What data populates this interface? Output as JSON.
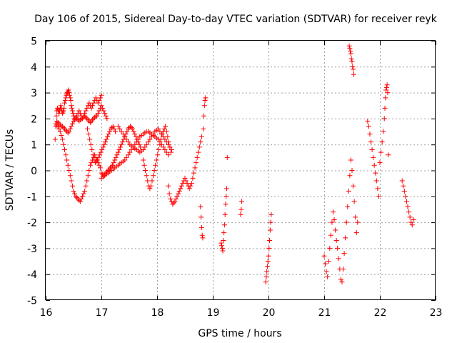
{
  "chart_data": {
    "type": "scatter",
    "title": "Day 106 of 2015, Sidereal Day-to-day VTEC variation (SDTVAR) for receiver reyk",
    "xlabel": "GPS time / hours",
    "ylabel": "SDTVAR / TECUs",
    "xlim": [
      16,
      23
    ],
    "ylim": [
      -5,
      5
    ],
    "xticks": [
      "16",
      "17",
      "18",
      "19",
      "20",
      "21",
      "22",
      "23"
    ],
    "yticks": [
      "5",
      "4",
      "3",
      "2",
      "1",
      "0",
      "-1",
      "-2",
      "-3",
      "-4",
      "-5"
    ],
    "grid": true,
    "marker": "+",
    "color": "#ff0000",
    "series": [
      {
        "name": "SDTVAR",
        "x": [
          16.17,
          16.18,
          16.19,
          16.2,
          16.21,
          16.22,
          16.23,
          16.24,
          16.25,
          16.26,
          16.27,
          16.28,
          16.29,
          16.3,
          16.31,
          16.32,
          16.33,
          16.34,
          16.35,
          16.36,
          16.37,
          16.38,
          16.39,
          16.4,
          16.41,
          16.42,
          16.43,
          16.44,
          16.45,
          16.46,
          16.47,
          16.48,
          16.49,
          16.5,
          16.52,
          16.54,
          16.56,
          16.58,
          16.6,
          16.62,
          16.64,
          16.66,
          16.68,
          16.7,
          16.72,
          16.74,
          16.76,
          16.78,
          16.8,
          16.82,
          16.84,
          16.86,
          16.88,
          16.9,
          16.92,
          16.94,
          16.96,
          16.98,
          17.0,
          16.2,
          16.22,
          16.24,
          16.26,
          16.28,
          16.3,
          16.32,
          16.34,
          16.36,
          16.38,
          16.4,
          16.42,
          16.44,
          16.46,
          16.48,
          16.5,
          16.52,
          16.54,
          16.56,
          16.58,
          16.6,
          16.62,
          16.64,
          16.66,
          16.68,
          16.7,
          16.72,
          16.74,
          16.76,
          16.78,
          16.8,
          16.82,
          16.84,
          16.86,
          16.88,
          16.9,
          16.92,
          16.94,
          16.96,
          16.98,
          17.0,
          17.02,
          17.04,
          17.06,
          17.08,
          17.1,
          16.18,
          16.2,
          16.22,
          16.24,
          16.26,
          16.28,
          16.3,
          16.32,
          16.34,
          16.36,
          16.38,
          16.4,
          16.42,
          16.44,
          16.46,
          16.48,
          16.5,
          16.52,
          16.54,
          16.56,
          16.58,
          16.6,
          16.62,
          16.64,
          16.66,
          16.68,
          16.7,
          16.72,
          16.74,
          16.76,
          16.78,
          16.8,
          16.82,
          16.84,
          16.86,
          16.88,
          16.9,
          16.92,
          16.94,
          16.96,
          16.98,
          16.75,
          16.77,
          16.79,
          16.81,
          16.83,
          16.85,
          16.87,
          16.89,
          16.91,
          16.93,
          16.95,
          16.97,
          16.99,
          17.01,
          17.03,
          17.05,
          17.07,
          17.09,
          17.11,
          17.13,
          17.15,
          17.17,
          17.19,
          17.21,
          17.23,
          17.25,
          17.0,
          17.02,
          17.04,
          17.06,
          17.08,
          17.1,
          17.12,
          17.14,
          17.16,
          17.18,
          17.2,
          17.22,
          17.24,
          17.26,
          17.28,
          17.3,
          17.32,
          17.34,
          17.36,
          17.38,
          17.4,
          17.42,
          17.44,
          17.46,
          17.48,
          17.5,
          17.52,
          17.54,
          17.56,
          17.58,
          17.6,
          17.62,
          17.64,
          17.66,
          17.68,
          17.7,
          17.0,
          17.03,
          17.06,
          17.09,
          17.12,
          17.15,
          17.18,
          17.21,
          17.24,
          17.27,
          17.3,
          17.33,
          17.36,
          17.39,
          17.42,
          17.45,
          17.48,
          17.51,
          17.54,
          17.57,
          17.6,
          17.63,
          17.66,
          17.69,
          17.72,
          17.75,
          17.78,
          17.81,
          17.84,
          17.87,
          17.9,
          17.93,
          17.96,
          17.99,
          18.02,
          18.05,
          18.08,
          18.11,
          18.14,
          18.17,
          18.2,
          17.3,
          17.33,
          17.36,
          17.39,
          17.42,
          17.45,
          17.48,
          17.51,
          17.54,
          17.57,
          17.6,
          17.63,
          17.66,
          17.69,
          17.72,
          17.75,
          17.78,
          17.81,
          17.84,
          17.87,
          17.9,
          17.93,
          17.96,
          17.99,
          18.02,
          18.05,
          18.08,
          18.11,
          18.14,
          18.17,
          18.2,
          18.23,
          18.26,
          17.75,
          17.77,
          17.79,
          17.81,
          17.83,
          17.85,
          17.87,
          17.89,
          17.91,
          17.93,
          17.95,
          17.97,
          17.99,
          18.01,
          18.03,
          18.05,
          18.07,
          18.09,
          18.11,
          18.13,
          18.15,
          18.17,
          18.19,
          18.21,
          18.23,
          18.25,
          18.2,
          18.22,
          18.24,
          18.26,
          18.28,
          18.3,
          18.32,
          18.34,
          18.36,
          18.38,
          18.4,
          18.42,
          18.44,
          18.46,
          18.48,
          18.5,
          18.52,
          18.54,
          18.56,
          18.58,
          18.6,
          18.62,
          18.64,
          18.66,
          18.68,
          18.7,
          18.72,
          18.74,
          18.76,
          18.78,
          18.8,
          18.78,
          18.79,
          18.8,
          18.81,
          18.82,
          18.83,
          18.84,
          18.85,
          18.86,
          18.87,
          19.15,
          19.16,
          19.17,
          19.18,
          19.19,
          19.2,
          19.21,
          19.22,
          19.23,
          19.24,
          19.25,
          19.26,
          19.5,
          19.51,
          19.52,
          19.95,
          19.96,
          19.97,
          19.98,
          19.99,
          20.0,
          20.01,
          20.02,
          20.03,
          20.04,
          20.05,
          21.0,
          21.02,
          21.04,
          21.06,
          21.08,
          21.1,
          21.12,
          21.14,
          21.16,
          21.18,
          21.2,
          21.22,
          21.24,
          21.26,
          21.28,
          21.3,
          21.32,
          21.34,
          21.36,
          21.38,
          21.4,
          21.42,
          21.44,
          21.46,
          21.48,
          21.5,
          21.52,
          21.54,
          21.56,
          21.58,
          21.6,
          21.45,
          21.46,
          21.47,
          21.48,
          21.49,
          21.5,
          21.51,
          21.52,
          21.53,
          21.78,
          21.8,
          21.82,
          21.84,
          21.86,
          21.88,
          21.9,
          21.92,
          21.94,
          21.96,
          21.98,
          22.0,
          22.02,
          22.04,
          22.06,
          22.08,
          22.09,
          22.1,
          22.11,
          22.12,
          22.13,
          22.14,
          22.15,
          22.4,
          22.42,
          22.44,
          22.46,
          22.48,
          22.5,
          22.52,
          22.54,
          22.56,
          22.58,
          22.6
        ],
        "y": [
          1.2,
          1.7,
          2.1,
          2.3,
          2.4,
          2.35,
          2.3,
          2.2,
          2.3,
          2.4,
          2.5,
          2.4,
          2.3,
          2.2,
          2.25,
          2.3,
          2.4,
          2.6,
          2.7,
          2.8,
          2.9,
          2.95,
          3.0,
          3.05,
          3.1,
          3.0,
          2.9,
          2.8,
          2.7,
          2.5,
          2.4,
          2.3,
          2.2,
          2.1,
          2.0,
          2.05,
          2.1,
          2.2,
          2.3,
          2.2,
          2.1,
          2.0,
          2.1,
          2.2,
          2.3,
          2.4,
          2.5,
          2.6,
          2.5,
          2.4,
          2.5,
          2.6,
          2.7,
          2.8,
          2.7,
          2.6,
          2.7,
          2.8,
          2.9,
          1.9,
          1.85,
          1.8,
          1.75,
          1.7,
          1.7,
          1.65,
          1.6,
          1.55,
          1.5,
          1.45,
          1.5,
          1.6,
          1.7,
          1.8,
          1.9,
          1.95,
          2.0,
          2.0,
          1.95,
          1.9,
          1.95,
          2.0,
          2.0,
          2.05,
          2.1,
          2.05,
          2.0,
          1.95,
          1.9,
          1.85,
          1.9,
          1.95,
          2.0,
          2.05,
          2.1,
          2.1,
          2.2,
          2.3,
          2.4,
          2.5,
          2.4,
          2.3,
          2.2,
          2.1,
          2.0,
          1.8,
          1.75,
          1.7,
          1.6,
          1.5,
          1.35,
          1.2,
          1.0,
          0.8,
          0.6,
          0.4,
          0.2,
          0.0,
          -0.2,
          -0.4,
          -0.6,
          -0.8,
          -0.9,
          -1.0,
          -1.05,
          -1.1,
          -1.15,
          -1.2,
          -1.1,
          -1.0,
          -0.9,
          -0.8,
          -0.6,
          -0.4,
          -0.2,
          0.0,
          0.2,
          0.3,
          0.4,
          0.5,
          0.6,
          0.5,
          0.4,
          0.3,
          0.2,
          0.1,
          1.6,
          1.4,
          1.2,
          1.0,
          0.8,
          0.6,
          0.4,
          0.3,
          0.35,
          0.4,
          0.5,
          0.6,
          0.7,
          0.8,
          0.9,
          1.0,
          1.1,
          1.2,
          1.3,
          1.4,
          1.5,
          1.6,
          1.65,
          1.7,
          1.6,
          1.5,
          -0.1,
          -0.15,
          -0.2,
          -0.15,
          -0.1,
          -0.05,
          0.0,
          0.05,
          0.1,
          0.15,
          0.2,
          0.3,
          0.4,
          0.5,
          0.6,
          0.7,
          0.8,
          0.9,
          1.0,
          1.1,
          1.2,
          1.3,
          1.4,
          1.5,
          1.6,
          1.65,
          1.7,
          1.65,
          1.6,
          1.5,
          1.4,
          1.3,
          1.2,
          1.1,
          1.0,
          0.9,
          -0.3,
          -0.25,
          -0.2,
          -0.15,
          -0.1,
          -0.05,
          0.0,
          0.05,
          0.1,
          0.15,
          0.2,
          0.25,
          0.3,
          0.35,
          0.4,
          0.5,
          0.6,
          0.7,
          0.8,
          0.9,
          1.0,
          1.1,
          1.2,
          1.3,
          1.35,
          1.4,
          1.45,
          1.5,
          1.5,
          1.45,
          1.4,
          1.35,
          1.3,
          1.25,
          1.2,
          1.1,
          1.0,
          0.9,
          0.8,
          0.7,
          0.6,
          1.7,
          1.6,
          1.5,
          1.4,
          1.3,
          1.2,
          1.1,
          1.0,
          0.95,
          0.9,
          0.85,
          0.8,
          0.75,
          0.7,
          0.75,
          0.8,
          0.9,
          1.0,
          1.1,
          1.2,
          1.3,
          1.4,
          1.5,
          1.55,
          1.6,
          1.5,
          1.4,
          1.3,
          1.2,
          1.1,
          1.0,
          0.9,
          0.8,
          0.4,
          0.2,
          0.0,
          -0.2,
          -0.4,
          -0.6,
          -0.7,
          -0.6,
          -0.4,
          -0.2,
          0.0,
          0.2,
          0.4,
          0.6,
          0.8,
          1.0,
          1.2,
          1.4,
          1.5,
          1.6,
          1.7,
          1.5,
          1.3,
          1.1,
          0.9,
          0.7,
          -0.6,
          -0.9,
          -1.1,
          -1.2,
          -1.3,
          -1.25,
          -1.2,
          -1.1,
          -1.0,
          -0.9,
          -0.8,
          -0.7,
          -0.6,
          -0.5,
          -0.4,
          -0.3,
          -0.4,
          -0.5,
          -0.6,
          -0.7,
          -0.6,
          -0.5,
          -0.3,
          -0.1,
          0.1,
          0.3,
          0.5,
          0.7,
          0.9,
          1.1,
          1.3,
          -1.4,
          -1.8,
          -2.2,
          -2.5,
          -2.6,
          1.6,
          2.1,
          2.5,
          2.7,
          2.8,
          -2.8,
          -2.9,
          -3.0,
          -3.1,
          -2.7,
          -2.4,
          -2.1,
          -1.7,
          -1.3,
          -1.0,
          -0.7,
          0.5,
          -1.7,
          -1.5,
          -1.2,
          -4.3,
          -4.1,
          -3.9,
          -3.7,
          -3.5,
          -3.3,
          -3.0,
          -2.7,
          -2.3,
          -2.0,
          -1.7,
          -3.3,
          -3.6,
          -3.9,
          -4.1,
          -3.5,
          -3.0,
          -2.5,
          -2.0,
          -1.6,
          -1.9,
          -2.3,
          -2.7,
          -3.0,
          -3.4,
          -3.8,
          -4.2,
          -4.3,
          -3.8,
          -3.2,
          -2.6,
          -2.0,
          -1.4,
          -0.8,
          -0.2,
          0.4,
          0.0,
          -0.6,
          -1.2,
          -1.8,
          -2.4,
          -2.0,
          4.8,
          4.7,
          4.6,
          4.5,
          4.3,
          4.2,
          4.0,
          3.9,
          3.7,
          1.9,
          1.7,
          1.4,
          1.1,
          0.8,
          0.5,
          0.2,
          -0.1,
          -0.4,
          -0.7,
          -1.0,
          0.3,
          0.7,
          1.1,
          1.5,
          2.0,
          2.4,
          2.8,
          3.1,
          3.2,
          3.3,
          3.0,
          0.6,
          -0.4,
          -0.6,
          -0.8,
          -1.0,
          -1.2,
          -1.4,
          -1.6,
          -1.8,
          -2.0,
          -2.1,
          -1.9
        ]
      }
    ]
  }
}
